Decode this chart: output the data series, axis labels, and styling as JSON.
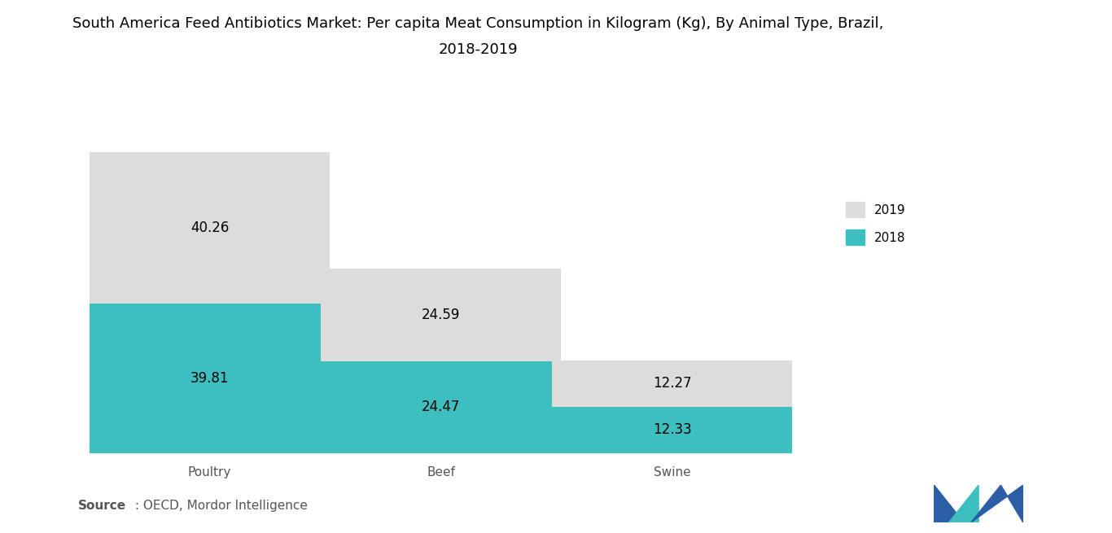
{
  "title_line1": "South America Feed Antibiotics Market: Per capita Meat Consumption in Kilogram (Kg), By Animal Type, Brazil,",
  "title_line2": "2018-2019",
  "categories": [
    "Poultry",
    "Beef",
    "Swine"
  ],
  "values_2018": [
    39.81,
    24.47,
    12.33
  ],
  "values_2019": [
    40.26,
    24.59,
    12.27
  ],
  "color_2018": "#3DBFBF",
  "color_2019": "#DCDCDC",
  "source_bold": "Source",
  "source_rest": " : OECD, Mordor Intelligence",
  "background_color": "#FFFFFF",
  "bar_width": 0.28,
  "title_fontsize": 13,
  "label_fontsize": 12,
  "tick_fontsize": 11,
  "source_fontsize": 11,
  "legend_fontsize": 11,
  "positions": [
    0.18,
    0.45,
    0.72
  ],
  "xlim": [
    0.0,
    1.0
  ],
  "ylim": [
    0,
    95
  ],
  "logo_colors": {
    "left": "#2B5EA7",
    "mid": "#3DBFBF",
    "right": "#2B5EA7"
  }
}
